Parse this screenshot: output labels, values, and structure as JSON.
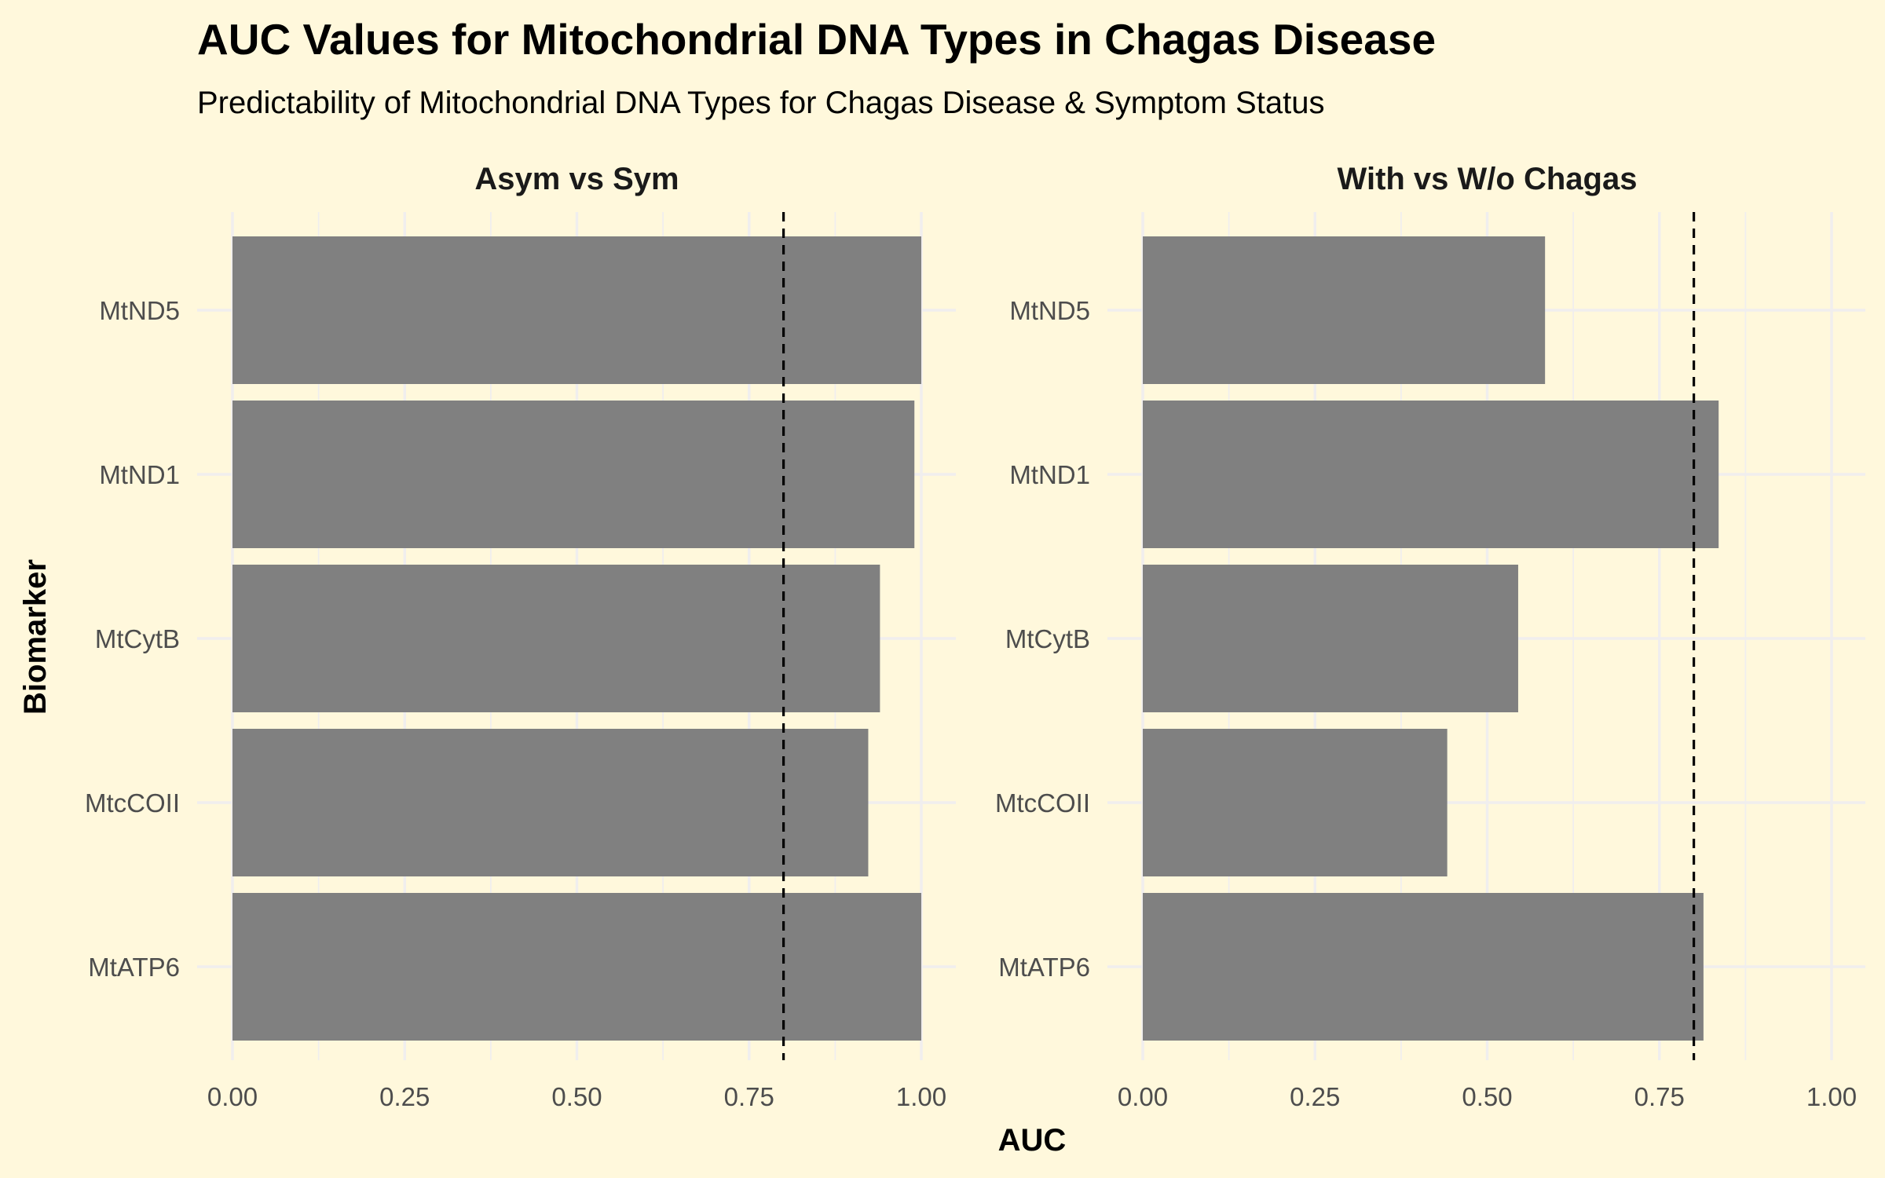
{
  "title": "AUC Values for Mitochondrial DNA Types in Chagas Disease",
  "subtitle": "Predictability of Mitochondrial DNA Types for Chagas Disease & Symptom Status",
  "chart_data": {
    "type": "bar",
    "orientation": "horizontal",
    "xlabel": "AUC",
    "ylabel": "Biomarker",
    "xlim": [
      0,
      1
    ],
    "x_ticks": [
      "0.00",
      "0.25",
      "0.50",
      "0.75",
      "1.00"
    ],
    "categories": [
      "MtND5",
      "MtND1",
      "MtCytB",
      "MtcCOII",
      "MtATP6"
    ],
    "reference_line": 0.8,
    "grid": true,
    "legend": "none",
    "bar_color": "#808080",
    "panels": [
      {
        "name": "Asym vs Sym",
        "values": [
          1.0,
          0.99,
          0.94,
          0.923,
          1.0
        ]
      },
      {
        "name": "With vs W/o Chagas",
        "values": [
          0.584,
          0.836,
          0.545,
          0.442,
          0.814
        ]
      }
    ]
  }
}
